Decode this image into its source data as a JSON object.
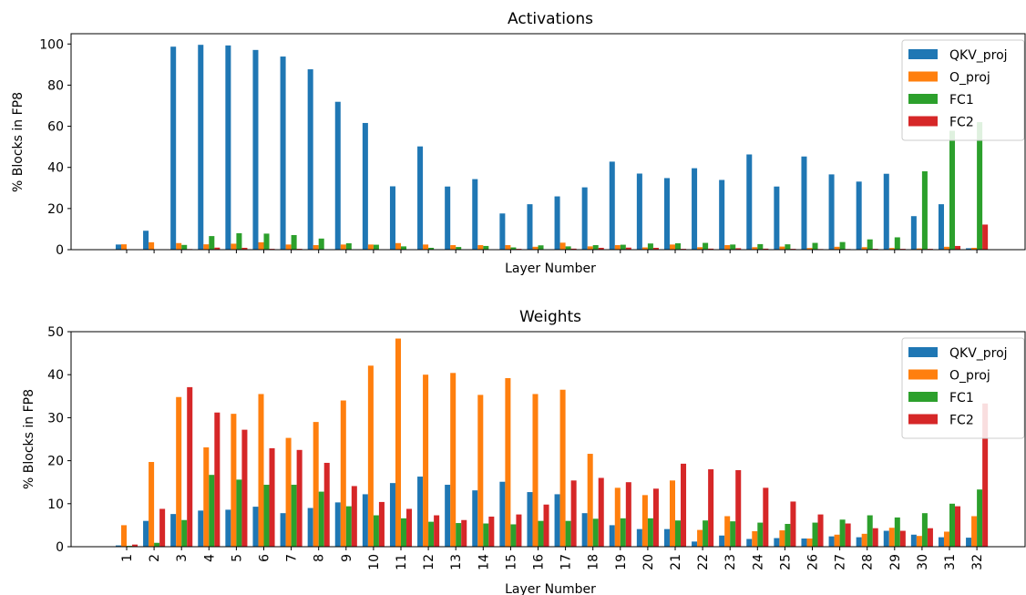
{
  "chart_data": [
    {
      "type": "bar",
      "title": "Activations",
      "xlabel": "Layer Number",
      "ylabel": "% Blocks in FP8",
      "ylim": [
        0,
        105
      ],
      "yticks": [
        0,
        20,
        40,
        60,
        80,
        100
      ],
      "show_xtick_labels": false,
      "legend_position": "top-right",
      "categories": [
        "1",
        "2",
        "3",
        "4",
        "5",
        "6",
        "7",
        "8",
        "9",
        "10",
        "11",
        "12",
        "13",
        "14",
        "15",
        "16",
        "17",
        "18",
        "19",
        "20",
        "21",
        "22",
        "23",
        "24",
        "25",
        "26",
        "27",
        "28",
        "29",
        "30",
        "31",
        "32"
      ],
      "series": [
        {
          "name": "QKV_proj",
          "color": "#1f77b4",
          "values": [
            2.5,
            9.2,
            98.7,
            99.6,
            99.3,
            97.1,
            93.9,
            87.7,
            71.9,
            61.6,
            30.8,
            50.2,
            30.7,
            34.3,
            17.6,
            22.1,
            25.9,
            30.3,
            42.8,
            37.0,
            34.8,
            39.6,
            33.9,
            46.3,
            30.7,
            45.3,
            36.6,
            33.1,
            36.9,
            16.3,
            22.1,
            0.7
          ]
        },
        {
          "name": "O_proj",
          "color": "#ff7f0e",
          "values": [
            2.6,
            3.6,
            3.2,
            2.6,
            2.9,
            3.6,
            2.5,
            2.2,
            2.5,
            2.5,
            3.2,
            2.5,
            2.2,
            2.2,
            2.2,
            1.4,
            3.4,
            1.6,
            2.2,
            1.1,
            2.5,
            1.2,
            2.2,
            1.2,
            1.5,
            0.8,
            1.4,
            1.2,
            0.8,
            0.6,
            1.4,
            0.9
          ]
        },
        {
          "name": "FC1",
          "color": "#2ca02c",
          "values": [
            0.2,
            0.2,
            2.3,
            6.6,
            8.0,
            7.8,
            7.1,
            5.4,
            3.1,
            2.4,
            1.6,
            0.9,
            1.3,
            1.8,
            1.1,
            2.1,
            1.6,
            2.2,
            2.4,
            3.0,
            3.1,
            3.3,
            2.5,
            2.7,
            2.6,
            3.3,
            3.7,
            5.0,
            6.0,
            38.1,
            57.8,
            62.0
          ]
        },
        {
          "name": "FC2",
          "color": "#d62728",
          "values": [
            0.1,
            0.1,
            0.3,
            1.0,
            0.9,
            0.4,
            0.4,
            0.2,
            0.2,
            0.2,
            0.1,
            0.2,
            0.2,
            0.2,
            0.4,
            0.1,
            0.5,
            0.9,
            1.0,
            0.9,
            0.4,
            0.5,
            0.7,
            0.5,
            0.4,
            0.3,
            0.3,
            0.4,
            0.4,
            0.4,
            1.8,
            12.2
          ]
        }
      ]
    },
    {
      "type": "bar",
      "title": "Weights",
      "xlabel": "Layer Number",
      "ylabel": "% Blocks in FP8",
      "ylim": [
        0,
        50
      ],
      "yticks": [
        0,
        10,
        20,
        30,
        40,
        50
      ],
      "show_xtick_labels": true,
      "legend_position": "top-right",
      "categories": [
        "1",
        "2",
        "3",
        "4",
        "5",
        "6",
        "7",
        "8",
        "9",
        "10",
        "11",
        "12",
        "13",
        "14",
        "15",
        "16",
        "17",
        "18",
        "19",
        "20",
        "21",
        "22",
        "23",
        "24",
        "25",
        "26",
        "27",
        "28",
        "29",
        "30",
        "31",
        "32"
      ],
      "series": [
        {
          "name": "QKV_proj",
          "color": "#1f77b4",
          "values": [
            0.3,
            6.0,
            7.6,
            8.4,
            8.6,
            9.3,
            7.8,
            9.0,
            10.3,
            12.2,
            14.8,
            16.3,
            14.4,
            13.1,
            15.1,
            12.7,
            12.2,
            7.8,
            5.0,
            4.1,
            4.1,
            1.2,
            2.6,
            1.8,
            2.0,
            1.9,
            2.4,
            2.2,
            3.7,
            2.8,
            2.2,
            2.1
          ]
        },
        {
          "name": "O_proj",
          "color": "#ff7f0e",
          "values": [
            5.0,
            19.7,
            34.8,
            23.1,
            30.9,
            35.5,
            25.3,
            29.0,
            34.0,
            42.1,
            48.4,
            40.0,
            40.4,
            35.3,
            39.2,
            35.5,
            36.5,
            21.6,
            13.7,
            12.0,
            15.4,
            3.9,
            7.1,
            3.6,
            3.8,
            1.9,
            2.8,
            3.0,
            4.4,
            2.5,
            3.5,
            7.1
          ]
        },
        {
          "name": "FC1",
          "color": "#2ca02c",
          "values": [
            0.2,
            0.9,
            6.2,
            16.7,
            15.6,
            14.4,
            14.4,
            12.8,
            9.4,
            7.3,
            6.6,
            5.8,
            5.5,
            5.4,
            5.2,
            6.0,
            6.0,
            6.5,
            6.6,
            6.6,
            6.1,
            6.1,
            5.9,
            5.6,
            5.3,
            5.6,
            6.3,
            7.3,
            6.8,
            7.8,
            10.0,
            13.3
          ]
        },
        {
          "name": "FC2",
          "color": "#d62728",
          "values": [
            0.5,
            8.8,
            37.1,
            31.2,
            27.2,
            22.9,
            22.5,
            19.5,
            14.1,
            10.4,
            8.8,
            7.3,
            6.2,
            7.0,
            7.5,
            9.8,
            15.4,
            16.0,
            15.0,
            13.5,
            19.3,
            18.0,
            17.8,
            13.7,
            10.5,
            7.5,
            5.4,
            4.3,
            3.7,
            4.3,
            9.4,
            33.3
          ]
        }
      ]
    }
  ]
}
